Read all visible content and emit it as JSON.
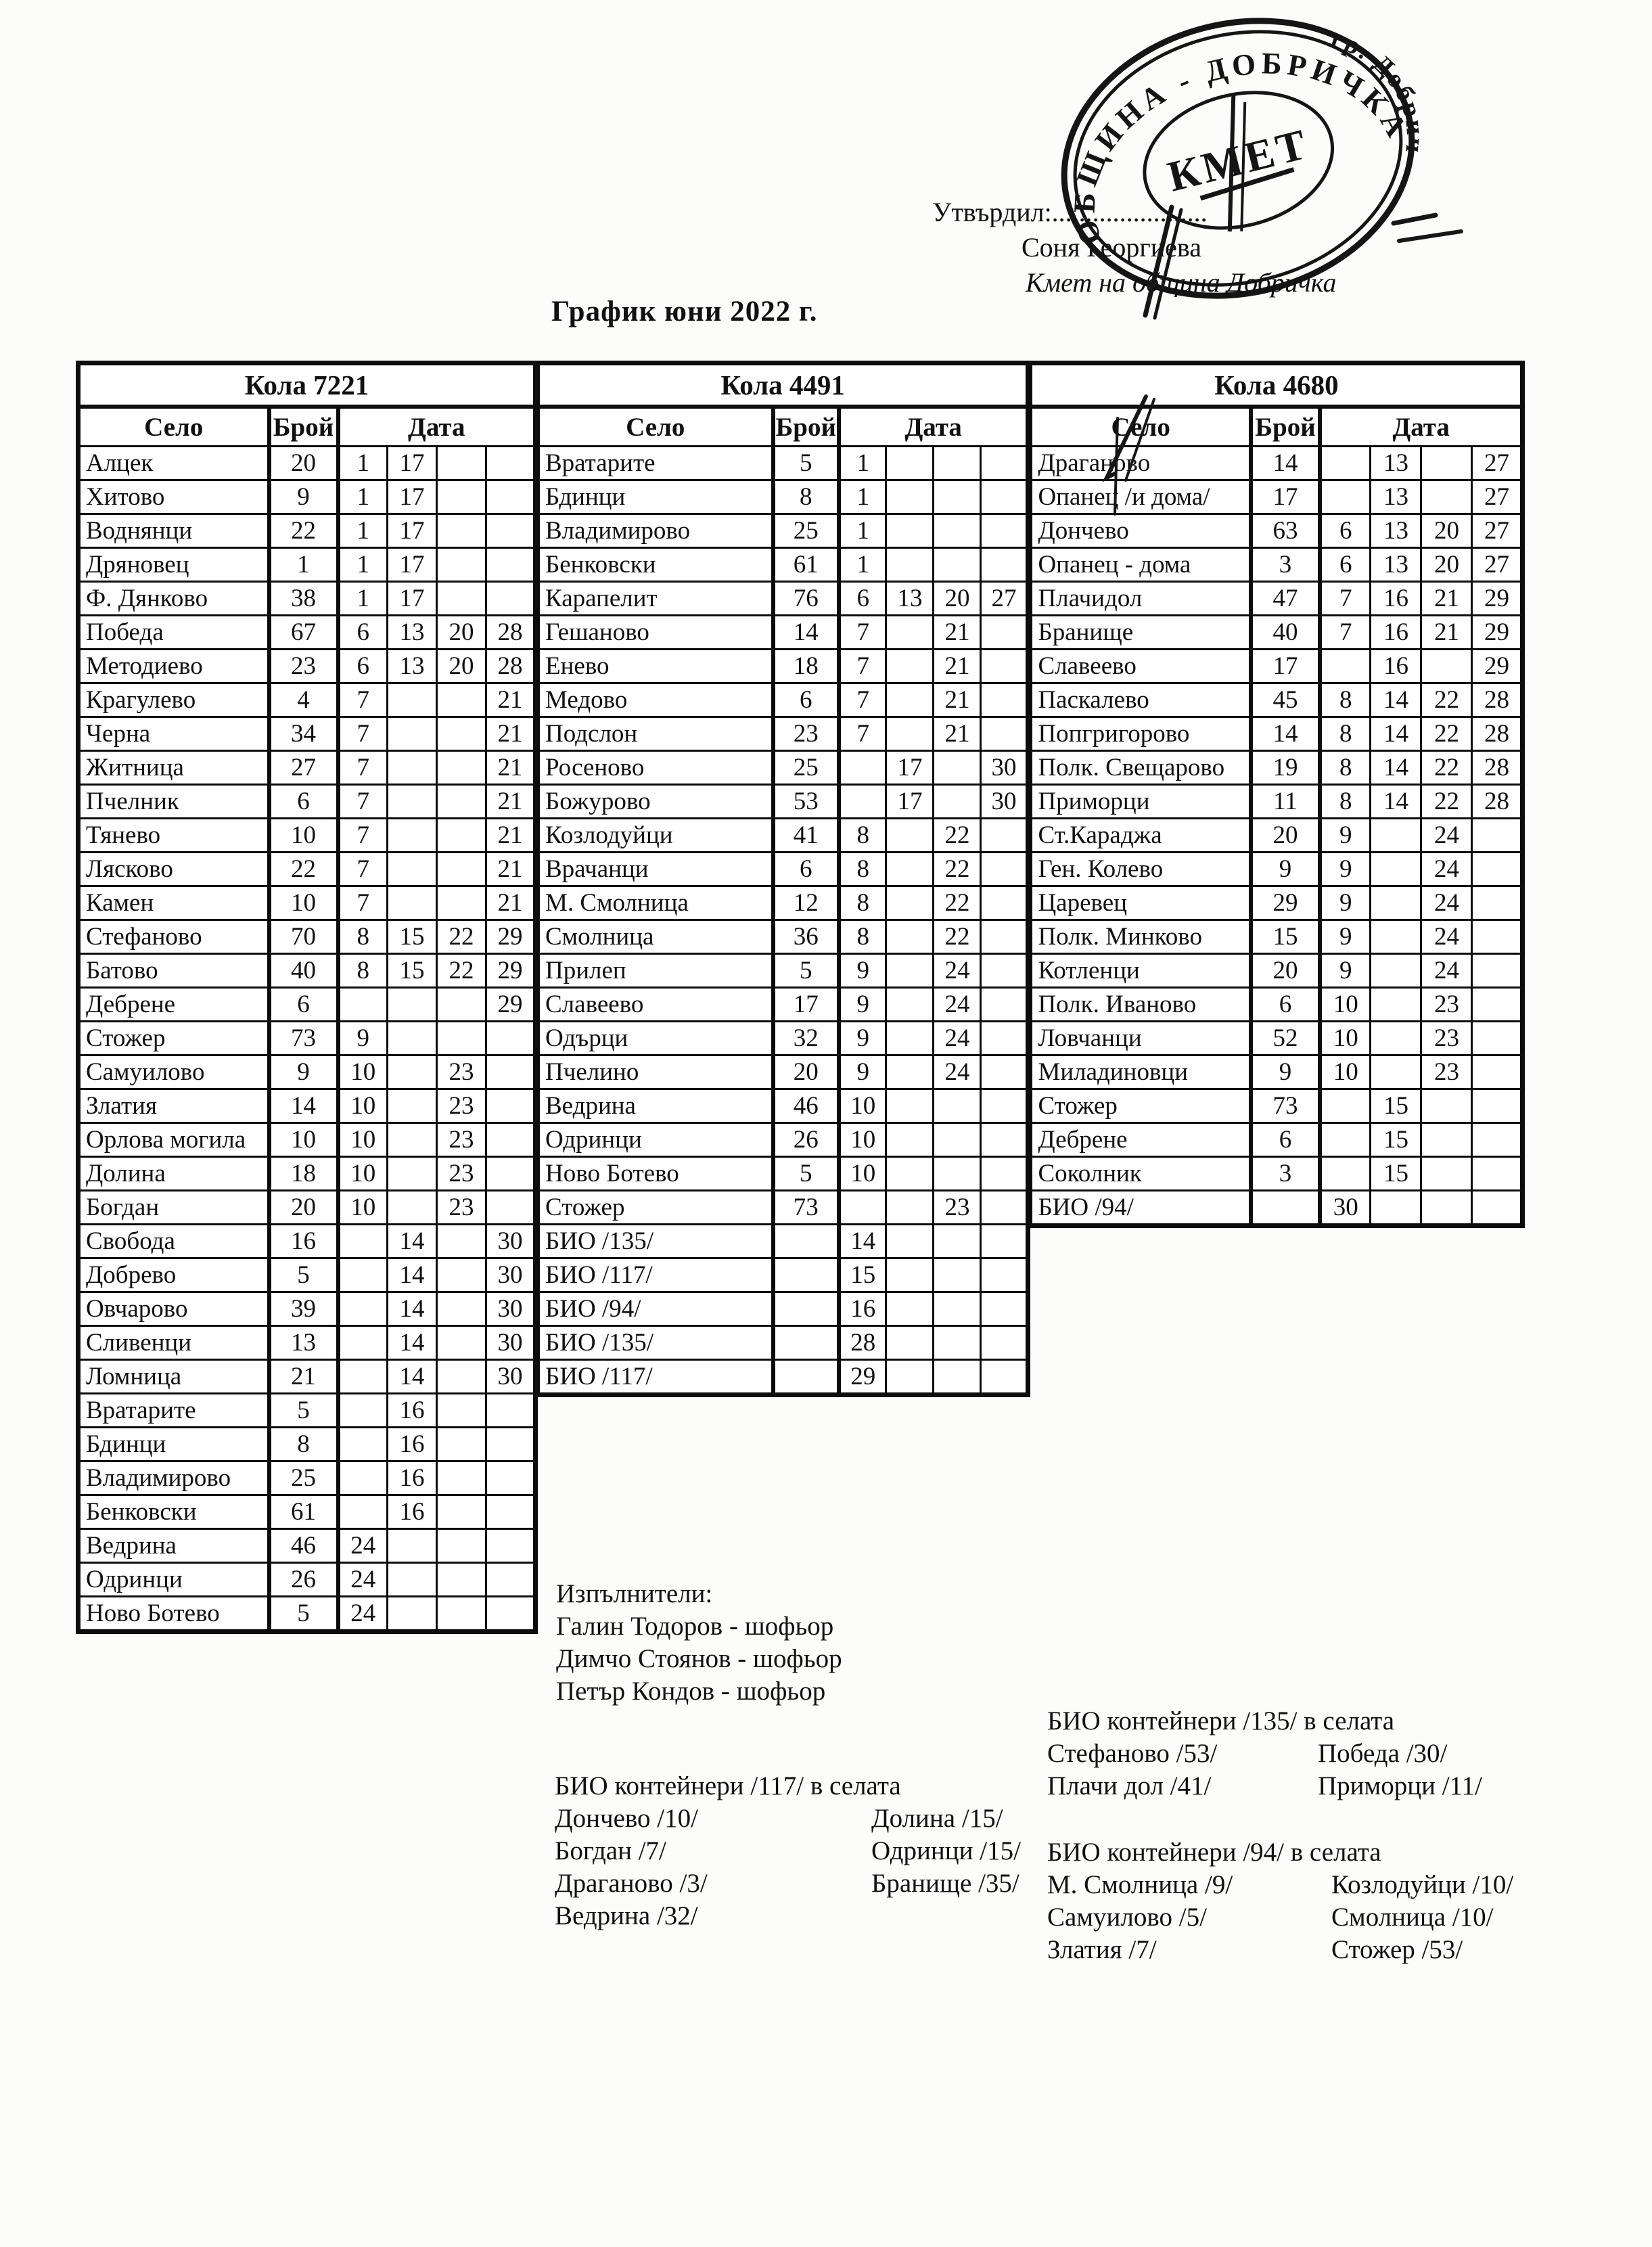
{
  "approval": {
    "label": "Утвърдил:.......................",
    "name": "Соня Георгиева",
    "role": "Кмет  на община Добричка"
  },
  "stamp": {
    "ring_text": "ОБЩИНА - ДОБРИЧКА",
    "ring_text_2": "гр. Добрич",
    "center_text": "КМЕТ"
  },
  "title": "График юни 2022 г.",
  "table_headers": {
    "village": "Село",
    "count": "Брой",
    "date": "Дата"
  },
  "tables": [
    {
      "car_label": "Кола 7221",
      "rows": [
        {
          "village": "Алцек",
          "count": "20",
          "dates": [
            "1",
            "17",
            "",
            ""
          ]
        },
        {
          "village": "Хитово",
          "count": "9",
          "dates": [
            "1",
            "17",
            "",
            ""
          ]
        },
        {
          "village": "Воднянци",
          "count": "22",
          "dates": [
            "1",
            "17",
            "",
            ""
          ]
        },
        {
          "village": "Дряновец",
          "count": "1",
          "dates": [
            "1",
            "17",
            "",
            ""
          ]
        },
        {
          "village": "Ф. Дянково",
          "count": "38",
          "dates": [
            "1",
            "17",
            "",
            ""
          ]
        },
        {
          "village": "Победа",
          "count": "67",
          "dates": [
            "6",
            "13",
            "20",
            "28"
          ]
        },
        {
          "village": "Методиево",
          "count": "23",
          "dates": [
            "6",
            "13",
            "20",
            "28"
          ]
        },
        {
          "village": "Крагулево",
          "count": "4",
          "dates": [
            "7",
            "",
            "",
            "21"
          ]
        },
        {
          "village": "Черна",
          "count": "34",
          "dates": [
            "7",
            "",
            "",
            "21"
          ]
        },
        {
          "village": "Житница",
          "count": "27",
          "dates": [
            "7",
            "",
            "",
            "21"
          ]
        },
        {
          "village": "Пчелник",
          "count": "6",
          "dates": [
            "7",
            "",
            "",
            "21"
          ]
        },
        {
          "village": "Тянево",
          "count": "10",
          "dates": [
            "7",
            "",
            "",
            "21"
          ]
        },
        {
          "village": "Лясково",
          "count": "22",
          "dates": [
            "7",
            "",
            "",
            "21"
          ]
        },
        {
          "village": "Камен",
          "count": "10",
          "dates": [
            "7",
            "",
            "",
            "21"
          ]
        },
        {
          "village": "Стефаново",
          "count": "70",
          "dates": [
            "8",
            "15",
            "22",
            "29"
          ]
        },
        {
          "village": "Батово",
          "count": "40",
          "dates": [
            "8",
            "15",
            "22",
            "29"
          ]
        },
        {
          "village": "Дебрене",
          "count": "6",
          "dates": [
            "",
            "",
            "",
            "29"
          ]
        },
        {
          "village": "Стожер",
          "count": "73",
          "dates": [
            "9",
            "",
            "",
            ""
          ]
        },
        {
          "village": "Самуилово",
          "count": "9",
          "dates": [
            "10",
            "",
            "23",
            ""
          ]
        },
        {
          "village": "Златия",
          "count": "14",
          "dates": [
            "10",
            "",
            "23",
            ""
          ]
        },
        {
          "village": "Орлова могила",
          "count": "10",
          "dates": [
            "10",
            "",
            "23",
            ""
          ]
        },
        {
          "village": "Долина",
          "count": "18",
          "dates": [
            "10",
            "",
            "23",
            ""
          ]
        },
        {
          "village": "Богдан",
          "count": "20",
          "dates": [
            "10",
            "",
            "23",
            ""
          ]
        },
        {
          "village": "Свобода",
          "count": "16",
          "dates": [
            "",
            "14",
            "",
            "30"
          ]
        },
        {
          "village": "Добрево",
          "count": "5",
          "dates": [
            "",
            "14",
            "",
            "30"
          ]
        },
        {
          "village": "Овчарово",
          "count": "39",
          "dates": [
            "",
            "14",
            "",
            "30"
          ]
        },
        {
          "village": "Сливенци",
          "count": "13",
          "dates": [
            "",
            "14",
            "",
            "30"
          ]
        },
        {
          "village": "Ломница",
          "count": "21",
          "dates": [
            "",
            "14",
            "",
            "30"
          ]
        },
        {
          "village": "Вратарите",
          "count": "5",
          "dates": [
            "",
            "16",
            "",
            ""
          ]
        },
        {
          "village": "Бдинци",
          "count": "8",
          "dates": [
            "",
            "16",
            "",
            ""
          ]
        },
        {
          "village": "Владимирово",
          "count": "25",
          "dates": [
            "",
            "16",
            "",
            ""
          ]
        },
        {
          "village": "Бенковски",
          "count": "61",
          "dates": [
            "",
            "16",
            "",
            ""
          ]
        },
        {
          "village": "Ведрина",
          "count": "46",
          "dates": [
            "24",
            "",
            "",
            ""
          ]
        },
        {
          "village": "Одринци",
          "count": "26",
          "dates": [
            "24",
            "",
            "",
            ""
          ]
        },
        {
          "village": "Ново Ботево",
          "count": "5",
          "dates": [
            "24",
            "",
            "",
            ""
          ]
        }
      ]
    },
    {
      "car_label": "Кола 4491",
      "rows": [
        {
          "village": "Вратарите",
          "count": "5",
          "dates": [
            "1",
            "",
            "",
            ""
          ]
        },
        {
          "village": "Бдинци",
          "count": "8",
          "dates": [
            "1",
            "",
            "",
            ""
          ]
        },
        {
          "village": "Владимирово",
          "count": "25",
          "dates": [
            "1",
            "",
            "",
            ""
          ]
        },
        {
          "village": "Бенковски",
          "count": "61",
          "dates": [
            "1",
            "",
            "",
            ""
          ]
        },
        {
          "village": "Карапелит",
          "count": "76",
          "dates": [
            "6",
            "13",
            "20",
            "27"
          ]
        },
        {
          "village": "Гешаново",
          "count": "14",
          "dates": [
            "7",
            "",
            "21",
            ""
          ]
        },
        {
          "village": "Енево",
          "count": "18",
          "dates": [
            "7",
            "",
            "21",
            ""
          ]
        },
        {
          "village": "Медово",
          "count": "6",
          "dates": [
            "7",
            "",
            "21",
            ""
          ]
        },
        {
          "village": "Подслон",
          "count": "23",
          "dates": [
            "7",
            "",
            "21",
            ""
          ]
        },
        {
          "village": "Росеново",
          "count": "25",
          "dates": [
            "",
            "17",
            "",
            "30"
          ]
        },
        {
          "village": "Божурово",
          "count": "53",
          "dates": [
            "",
            "17",
            "",
            "30"
          ]
        },
        {
          "village": "Козлодуйци",
          "count": "41",
          "dates": [
            "8",
            "",
            "22",
            ""
          ]
        },
        {
          "village": "Врачанци",
          "count": "6",
          "dates": [
            "8",
            "",
            "22",
            ""
          ]
        },
        {
          "village": "М. Смолница",
          "count": "12",
          "dates": [
            "8",
            "",
            "22",
            ""
          ]
        },
        {
          "village": "Смолница",
          "count": "36",
          "dates": [
            "8",
            "",
            "22",
            ""
          ]
        },
        {
          "village": "Прилеп",
          "count": "5",
          "dates": [
            "9",
            "",
            "24",
            ""
          ]
        },
        {
          "village": "Славеево",
          "count": "17",
          "dates": [
            "9",
            "",
            "24",
            ""
          ]
        },
        {
          "village": "Одърци",
          "count": "32",
          "dates": [
            "9",
            "",
            "24",
            ""
          ]
        },
        {
          "village": "Пчелино",
          "count": "20",
          "dates": [
            "9",
            "",
            "24",
            ""
          ]
        },
        {
          "village": "Ведрина",
          "count": "46",
          "dates": [
            "10",
            "",
            "",
            ""
          ]
        },
        {
          "village": "Одринци",
          "count": "26",
          "dates": [
            "10",
            "",
            "",
            ""
          ]
        },
        {
          "village": "Ново Ботево",
          "count": "5",
          "dates": [
            "10",
            "",
            "",
            ""
          ]
        },
        {
          "village": "Стожер",
          "count": "73",
          "dates": [
            "",
            "",
            "23",
            ""
          ]
        },
        {
          "village": "БИО /135/",
          "count": "",
          "dates": [
            "14",
            "",
            "",
            ""
          ]
        },
        {
          "village": "БИО /117/",
          "count": "",
          "dates": [
            "15",
            "",
            "",
            ""
          ]
        },
        {
          "village": "БИО /94/",
          "count": "",
          "dates": [
            "16",
            "",
            "",
            ""
          ]
        },
        {
          "village": "БИО /135/",
          "count": "",
          "dates": [
            "28",
            "",
            "",
            ""
          ]
        },
        {
          "village": "БИО /117/",
          "count": "",
          "dates": [
            "29",
            "",
            "",
            ""
          ]
        }
      ]
    },
    {
      "car_label": "Кола 4680",
      "rows": [
        {
          "village": "Драганово",
          "count": "14",
          "dates": [
            "",
            "13",
            "",
            "27"
          ]
        },
        {
          "village": "Опанец /и дома/",
          "count": "17",
          "dates": [
            "",
            "13",
            "",
            "27"
          ]
        },
        {
          "village": "Дончево",
          "count": "63",
          "dates": [
            "6",
            "13",
            "20",
            "27"
          ]
        },
        {
          "village": "Опанец - дома",
          "count": "3",
          "dates": [
            "6",
            "13",
            "20",
            "27"
          ]
        },
        {
          "village": "Плачидол",
          "count": "47",
          "dates": [
            "7",
            "16",
            "21",
            "29"
          ]
        },
        {
          "village": "Бранище",
          "count": "40",
          "dates": [
            "7",
            "16",
            "21",
            "29"
          ]
        },
        {
          "village": "Славеево",
          "count": "17",
          "dates": [
            "",
            "16",
            "",
            "29"
          ]
        },
        {
          "village": "Паскалево",
          "count": "45",
          "dates": [
            "8",
            "14",
            "22",
            "28"
          ]
        },
        {
          "village": "Попгригорово",
          "count": "14",
          "dates": [
            "8",
            "14",
            "22",
            "28"
          ]
        },
        {
          "village": "Полк. Свещарово",
          "count": "19",
          "dates": [
            "8",
            "14",
            "22",
            "28"
          ]
        },
        {
          "village": "Приморци",
          "count": "11",
          "dates": [
            "8",
            "14",
            "22",
            "28"
          ]
        },
        {
          "village": "Ст.Караджа",
          "count": "20",
          "dates": [
            "9",
            "",
            "24",
            ""
          ]
        },
        {
          "village": "Ген. Колево",
          "count": "9",
          "dates": [
            "9",
            "",
            "24",
            ""
          ]
        },
        {
          "village": "Царевец",
          "count": "29",
          "dates": [
            "9",
            "",
            "24",
            ""
          ]
        },
        {
          "village": "Полк. Минково",
          "count": "15",
          "dates": [
            "9",
            "",
            "24",
            ""
          ]
        },
        {
          "village": "Котленци",
          "count": "20",
          "dates": [
            "9",
            "",
            "24",
            ""
          ]
        },
        {
          "village": "Полк. Иваново",
          "count": "6",
          "dates": [
            "10",
            "",
            "23",
            ""
          ]
        },
        {
          "village": "Ловчанци",
          "count": "52",
          "dates": [
            "10",
            "",
            "23",
            ""
          ]
        },
        {
          "village": "Миладиновци",
          "count": "9",
          "dates": [
            "10",
            "",
            "23",
            ""
          ]
        },
        {
          "village": "Стожер",
          "count": "73",
          "dates": [
            "",
            "15",
            "",
            ""
          ]
        },
        {
          "village": "Дебрене",
          "count": "6",
          "dates": [
            "",
            "15",
            "",
            ""
          ]
        },
        {
          "village": "Соколник",
          "count": "3",
          "dates": [
            "",
            "15",
            "",
            ""
          ]
        },
        {
          "village": "БИО /94/",
          "count": "",
          "dates": [
            "30",
            "",
            "",
            ""
          ]
        }
      ]
    }
  ],
  "executors": {
    "heading": "Изпълнители:",
    "items": [
      "Галин Тодоров - шофьор",
      "Димчо Стоянов - шофьор",
      "Петър Кондов - шофьор"
    ]
  },
  "bio_sections": [
    {
      "id": "bio117",
      "heading": "БИО контейнери /117/ в селата",
      "col1": [
        "Дончево /10/",
        "Богдан /7/",
        "Драганово /3/",
        "Ведрина /32/"
      ],
      "col2": [
        "Долина /15/",
        "Одринци /15/",
        "Бранище /35/"
      ]
    },
    {
      "id": "bio135",
      "heading": "БИО контейнери /135/ в селата",
      "col1": [
        "Стефаново /53/",
        "Плачи дол /41/"
      ],
      "col2": [
        "Победа /30/",
        "Приморци /11/"
      ]
    },
    {
      "id": "bio94",
      "heading": "БИО контейнери /94/ в селата",
      "col1": [
        "М. Смолница /9/",
        "Самуилово /5/",
        "Златия /7/"
      ],
      "col2": [
        "Козлодуйци /10/",
        "Смолница /10/",
        "Стожер /53/"
      ]
    }
  ]
}
